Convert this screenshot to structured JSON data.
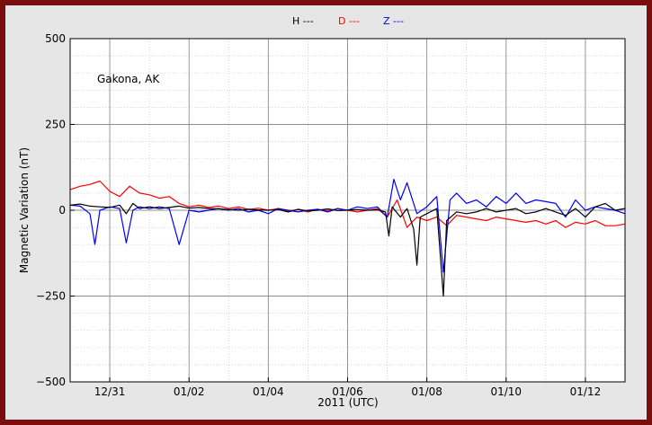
{
  "chart_data": {
    "type": "line",
    "annotation": "Gakona, AK",
    "xlabel": "2011 (UTC)",
    "ylabel": "Magnetic Variation (nT)",
    "ylim": [
      -500,
      500
    ],
    "yticks": [
      -500,
      -250,
      0,
      250,
      500
    ],
    "xlim": [
      "2010-12-30",
      "2011-01-13"
    ],
    "xticks": [
      {
        "date": "2010-12-31",
        "label": "12/31"
      },
      {
        "date": "2011-01-02",
        "label": "01/02"
      },
      {
        "date": "2011-01-04",
        "label": "01/04"
      },
      {
        "date": "2011-01-06",
        "label": "01/06"
      },
      {
        "date": "2011-01-08",
        "label": "01/08"
      },
      {
        "date": "2011-01-10",
        "label": "01/10"
      },
      {
        "date": "2011-01-12",
        "label": "01/12"
      }
    ],
    "grid": true,
    "legend_position": "top-center",
    "series": [
      {
        "name": "H ---",
        "color": "#000000",
        "points": [
          [
            "2010-12-30T00:00",
            15
          ],
          [
            "2010-12-30T06:00",
            18
          ],
          [
            "2010-12-30T12:00",
            12
          ],
          [
            "2010-12-30T18:00",
            10
          ],
          [
            "2010-12-31T00:00",
            8
          ],
          [
            "2010-12-31T06:00",
            15
          ],
          [
            "2010-12-31T10:00",
            -10
          ],
          [
            "2010-12-31T14:00",
            20
          ],
          [
            "2010-12-31T18:00",
            5
          ],
          [
            "2011-01-01T00:00",
            10
          ],
          [
            "2011-01-01T06:00",
            5
          ],
          [
            "2011-01-01T12:00",
            8
          ],
          [
            "2011-01-01T18:00",
            12
          ],
          [
            "2011-01-02T00:00",
            6
          ],
          [
            "2011-01-02T06:00",
            8
          ],
          [
            "2011-01-02T12:00",
            5
          ],
          [
            "2011-01-02T18:00",
            4
          ],
          [
            "2011-01-03T00:00",
            2
          ],
          [
            "2011-01-03T06:00",
            0
          ],
          [
            "2011-01-03T12:00",
            3
          ],
          [
            "2011-01-03T18:00",
            1
          ],
          [
            "2011-01-04T00:00",
            0
          ],
          [
            "2011-01-04T06:00",
            2
          ],
          [
            "2011-01-04T12:00",
            -5
          ],
          [
            "2011-01-04T18:00",
            3
          ],
          [
            "2011-01-05T00:00",
            -2
          ],
          [
            "2011-01-05T06:00",
            0
          ],
          [
            "2011-01-05T12:00",
            4
          ],
          [
            "2011-01-05T18:00",
            -1
          ],
          [
            "2011-01-06T00:00",
            0
          ],
          [
            "2011-01-06T06:00",
            2
          ],
          [
            "2011-01-06T12:00",
            0
          ],
          [
            "2011-01-06T18:00",
            1
          ],
          [
            "2011-01-06T23:00",
            -5
          ],
          [
            "2011-01-07T01:00",
            -75
          ],
          [
            "2011-01-07T03:00",
            10
          ],
          [
            "2011-01-07T08:00",
            -20
          ],
          [
            "2011-01-07T12:00",
            5
          ],
          [
            "2011-01-07T16:00",
            -55
          ],
          [
            "2011-01-07T18:00",
            -160
          ],
          [
            "2011-01-07T20:00",
            -20
          ],
          [
            "2011-01-08T00:00",
            -10
          ],
          [
            "2011-01-08T06:00",
            5
          ],
          [
            "2011-01-08T10:00",
            -250
          ],
          [
            "2011-01-08T12:00",
            -30
          ],
          [
            "2011-01-08T18:00",
            -5
          ],
          [
            "2011-01-09T00:00",
            -10
          ],
          [
            "2011-01-09T06:00",
            -5
          ],
          [
            "2011-01-09T12:00",
            5
          ],
          [
            "2011-01-09T18:00",
            -5
          ],
          [
            "2011-01-10T00:00",
            0
          ],
          [
            "2011-01-10T06:00",
            5
          ],
          [
            "2011-01-10T12:00",
            -10
          ],
          [
            "2011-01-10T18:00",
            -5
          ],
          [
            "2011-01-11T00:00",
            5
          ],
          [
            "2011-01-11T06:00",
            -5
          ],
          [
            "2011-01-11T12:00",
            -15
          ],
          [
            "2011-01-11T18:00",
            5
          ],
          [
            "2011-01-12T00:00",
            -20
          ],
          [
            "2011-01-12T06:00",
            10
          ],
          [
            "2011-01-12T12:00",
            20
          ],
          [
            "2011-01-12T18:00",
            0
          ],
          [
            "2011-01-13T00:00",
            5
          ]
        ]
      },
      {
        "name": "D ---",
        "color": "#ff0000",
        "points": [
          [
            "2010-12-30T00:00",
            60
          ],
          [
            "2010-12-30T06:00",
            70
          ],
          [
            "2010-12-30T12:00",
            75
          ],
          [
            "2010-12-30T18:00",
            85
          ],
          [
            "2010-12-31T00:00",
            55
          ],
          [
            "2010-12-31T06:00",
            40
          ],
          [
            "2010-12-31T12:00",
            70
          ],
          [
            "2010-12-31T18:00",
            50
          ],
          [
            "2011-01-01T00:00",
            45
          ],
          [
            "2011-01-01T06:00",
            35
          ],
          [
            "2011-01-01T12:00",
            40
          ],
          [
            "2011-01-01T18:00",
            20
          ],
          [
            "2011-01-02T00:00",
            10
          ],
          [
            "2011-01-02T06:00",
            15
          ],
          [
            "2011-01-02T12:00",
            8
          ],
          [
            "2011-01-02T18:00",
            12
          ],
          [
            "2011-01-03T00:00",
            5
          ],
          [
            "2011-01-03T06:00",
            10
          ],
          [
            "2011-01-03T12:00",
            2
          ],
          [
            "2011-01-03T18:00",
            6
          ],
          [
            "2011-01-04T00:00",
            0
          ],
          [
            "2011-01-04T06:00",
            5
          ],
          [
            "2011-01-04T12:00",
            -3
          ],
          [
            "2011-01-04T18:00",
            2
          ],
          [
            "2011-01-05T00:00",
            -5
          ],
          [
            "2011-01-05T06:00",
            3
          ],
          [
            "2011-01-05T12:00",
            -2
          ],
          [
            "2011-01-05T18:00",
            5
          ],
          [
            "2011-01-06T00:00",
            0
          ],
          [
            "2011-01-06T06:00",
            -5
          ],
          [
            "2011-01-06T12:00",
            0
          ],
          [
            "2011-01-06T18:00",
            5
          ],
          [
            "2011-01-07T00:00",
            -20
          ],
          [
            "2011-01-07T06:00",
            30
          ],
          [
            "2011-01-07T12:00",
            -50
          ],
          [
            "2011-01-07T18:00",
            -20
          ],
          [
            "2011-01-08T00:00",
            -30
          ],
          [
            "2011-01-08T06:00",
            -20
          ],
          [
            "2011-01-08T12:00",
            -45
          ],
          [
            "2011-01-08T18:00",
            -15
          ],
          [
            "2011-01-09T00:00",
            -20
          ],
          [
            "2011-01-09T06:00",
            -25
          ],
          [
            "2011-01-09T12:00",
            -30
          ],
          [
            "2011-01-09T18:00",
            -20
          ],
          [
            "2011-01-10T00:00",
            -25
          ],
          [
            "2011-01-10T06:00",
            -30
          ],
          [
            "2011-01-10T12:00",
            -35
          ],
          [
            "2011-01-10T18:00",
            -30
          ],
          [
            "2011-01-11T00:00",
            -40
          ],
          [
            "2011-01-11T06:00",
            -30
          ],
          [
            "2011-01-11T12:00",
            -50
          ],
          [
            "2011-01-11T18:00",
            -35
          ],
          [
            "2011-01-12T00:00",
            -40
          ],
          [
            "2011-01-12T06:00",
            -30
          ],
          [
            "2011-01-12T12:00",
            -45
          ],
          [
            "2011-01-12T18:00",
            -45
          ],
          [
            "2011-01-13T00:00",
            -40
          ]
        ]
      },
      {
        "name": "Z ---",
        "color": "#0000ff",
        "points": [
          [
            "2010-12-30T00:00",
            15
          ],
          [
            "2010-12-30T06:00",
            12
          ],
          [
            "2010-12-30T12:00",
            -10
          ],
          [
            "2010-12-30T15:00",
            -100
          ],
          [
            "2010-12-30T18:00",
            0
          ],
          [
            "2010-12-31T00:00",
            10
          ],
          [
            "2010-12-31T06:00",
            5
          ],
          [
            "2010-12-31T10:00",
            -95
          ],
          [
            "2010-12-31T14:00",
            0
          ],
          [
            "2010-12-31T18:00",
            10
          ],
          [
            "2011-01-01T00:00",
            5
          ],
          [
            "2011-01-01T06:00",
            10
          ],
          [
            "2011-01-01T12:00",
            5
          ],
          [
            "2011-01-01T18:00",
            -100
          ],
          [
            "2011-01-02T00:00",
            0
          ],
          [
            "2011-01-02T06:00",
            -5
          ],
          [
            "2011-01-02T12:00",
            0
          ],
          [
            "2011-01-02T18:00",
            5
          ],
          [
            "2011-01-03T00:00",
            0
          ],
          [
            "2011-01-03T06:00",
            5
          ],
          [
            "2011-01-03T12:00",
            -5
          ],
          [
            "2011-01-03T18:00",
            0
          ],
          [
            "2011-01-04T00:00",
            -10
          ],
          [
            "2011-01-04T06:00",
            5
          ],
          [
            "2011-01-04T12:00",
            0
          ],
          [
            "2011-01-04T18:00",
            -5
          ],
          [
            "2011-01-05T00:00",
            0
          ],
          [
            "2011-01-05T06:00",
            3
          ],
          [
            "2011-01-05T12:00",
            -5
          ],
          [
            "2011-01-05T18:00",
            5
          ],
          [
            "2011-01-06T00:00",
            0
          ],
          [
            "2011-01-06T06:00",
            10
          ],
          [
            "2011-01-06T12:00",
            5
          ],
          [
            "2011-01-06T18:00",
            10
          ],
          [
            "2011-01-07T00:00",
            -20
          ],
          [
            "2011-01-07T04:00",
            90
          ],
          [
            "2011-01-07T08:00",
            30
          ],
          [
            "2011-01-07T12:00",
            80
          ],
          [
            "2011-01-07T18:00",
            -10
          ],
          [
            "2011-01-08T00:00",
            10
          ],
          [
            "2011-01-08T06:00",
            40
          ],
          [
            "2011-01-08T10:00",
            -180
          ],
          [
            "2011-01-08T14:00",
            30
          ],
          [
            "2011-01-08T18:00",
            50
          ],
          [
            "2011-01-09T00:00",
            20
          ],
          [
            "2011-01-09T06:00",
            30
          ],
          [
            "2011-01-09T12:00",
            10
          ],
          [
            "2011-01-09T18:00",
            40
          ],
          [
            "2011-01-10T00:00",
            20
          ],
          [
            "2011-01-10T06:00",
            50
          ],
          [
            "2011-01-10T12:00",
            20
          ],
          [
            "2011-01-10T18:00",
            30
          ],
          [
            "2011-01-11T00:00",
            25
          ],
          [
            "2011-01-11T06:00",
            20
          ],
          [
            "2011-01-11T12:00",
            -20
          ],
          [
            "2011-01-11T18:00",
            30
          ],
          [
            "2011-01-12T00:00",
            0
          ],
          [
            "2011-01-12T06:00",
            10
          ],
          [
            "2011-01-12T12:00",
            5
          ],
          [
            "2011-01-12T18:00",
            0
          ],
          [
            "2011-01-13T00:00",
            -10
          ]
        ]
      }
    ]
  }
}
